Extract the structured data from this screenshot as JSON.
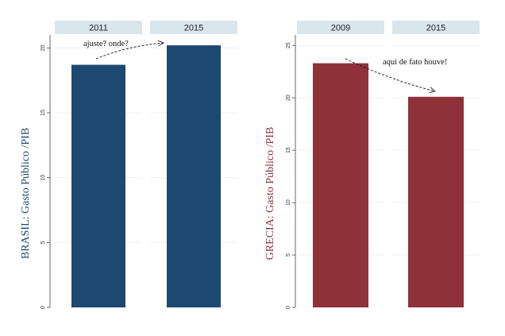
{
  "chart_data": [
    {
      "type": "bar",
      "ylabel": "BRASIL: Gasto Público /PIB",
      "ylim": [
        0,
        21
      ],
      "yticks": [
        0,
        5,
        10,
        15,
        20
      ],
      "panels": [
        {
          "label": "2011",
          "value": 18.7
        },
        {
          "label": "2015",
          "value": 20.2
        }
      ],
      "annotation": "ajuste? onde?",
      "color": "#1c4871",
      "grid": true
    },
    {
      "type": "bar",
      "ylabel": "GRECIA: Gasto Público /PIB",
      "ylim": [
        0,
        26
      ],
      "yticks": [
        0,
        5,
        10,
        15,
        20,
        25
      ],
      "panels": [
        {
          "label": "2009",
          "value": 23.3
        },
        {
          "label": "2015",
          "value": 20.1
        }
      ],
      "annotation": "aqui de fato houve!",
      "color": "#8f3139",
      "grid": true
    }
  ]
}
